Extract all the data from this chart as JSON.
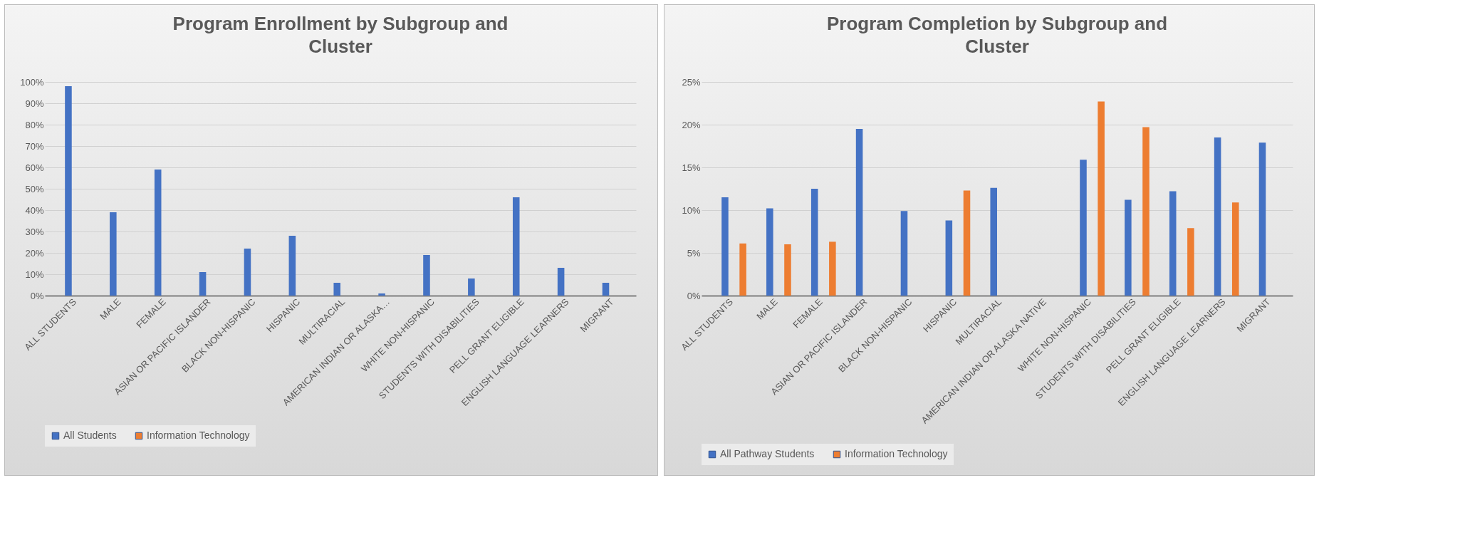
{
  "chart_data": [
    {
      "type": "bar",
      "title": "Program Enrollment by Subgroup and Cluster",
      "categories": [
        "ALL STUDENTS",
        "MALE",
        "FEMALE",
        "ASIAN OR PACIFIC ISLANDER",
        "BLACK NON-HISPANIC",
        "HISPANIC",
        "MULTIRACIAL",
        "AMERICAN INDIAN OR ALASKA…",
        "WHITE NON-HISPANIC",
        "STUDENTS WITH DISABILITIES",
        "PELL GRANT ELIGIBLE",
        "ENGLISH LANGUAGE LEARNERS",
        "MIGRANT"
      ],
      "series": [
        {
          "name": "All Students",
          "color": "#4472c4",
          "values": [
            98,
            39,
            59,
            11,
            22,
            28,
            6,
            1,
            19,
            8,
            46,
            13,
            6
          ]
        },
        {
          "name": "Information Technology",
          "color": "#ed7d31",
          "values": [
            0,
            0,
            0,
            0,
            0,
            0,
            0,
            0,
            0,
            0,
            0,
            0,
            0
          ]
        }
      ],
      "ylim": [
        0,
        100
      ],
      "yticks": [
        {
          "value": 0,
          "label": "0%"
        },
        {
          "value": 10,
          "label": "10%"
        },
        {
          "value": 20,
          "label": "20%"
        },
        {
          "value": 30,
          "label": "30%"
        },
        {
          "value": 40,
          "label": "40%"
        },
        {
          "value": 50,
          "label": "50%"
        },
        {
          "value": 60,
          "label": "60%"
        },
        {
          "value": 70,
          "label": "70%"
        },
        {
          "value": 80,
          "label": "80%"
        },
        {
          "value": 90,
          "label": "90%"
        },
        {
          "value": 100,
          "label": "100%"
        }
      ],
      "grid": "y",
      "legend": "bottom"
    },
    {
      "type": "bar",
      "title": "Program Completion by Subgroup and Cluster",
      "categories": [
        "ALL STUDENTS",
        "MALE",
        "FEMALE",
        "ASIAN OR PACIFIC ISLANDER",
        "BLACK NON-HISPANIC",
        "HISPANIC",
        "MULTIRACIAL",
        "AMERICAN INDIAN OR ALASKA NATIVE",
        "WHITE NON-HISPANIC",
        "STUDENTS WITH DISABILITIES",
        "PELL GRANT ELIGIBLE",
        "ENGLISH LANGUAGE LEARNERS",
        "MIGRANT"
      ],
      "series": [
        {
          "name": "All Pathway Students",
          "color": "#4472c4",
          "values": [
            11.5,
            10.2,
            12.5,
            19.5,
            9.9,
            8.8,
            12.6,
            0,
            15.9,
            11.2,
            12.2,
            18.5,
            17.9
          ]
        },
        {
          "name": "Information Technology",
          "color": "#ed7d31",
          "values": [
            6.1,
            6.0,
            6.3,
            0,
            0,
            12.3,
            0,
            0,
            22.7,
            19.7,
            7.9,
            10.9,
            0
          ]
        }
      ],
      "ylim": [
        0,
        25
      ],
      "yticks": [
        {
          "value": 0,
          "label": "0%"
        },
        {
          "value": 5,
          "label": "5%"
        },
        {
          "value": 10,
          "label": "10%"
        },
        {
          "value": 15,
          "label": "15%"
        },
        {
          "value": 20,
          "label": "20%"
        },
        {
          "value": 25,
          "label": "25%"
        }
      ],
      "grid": "y",
      "legend": "bottom"
    }
  ]
}
